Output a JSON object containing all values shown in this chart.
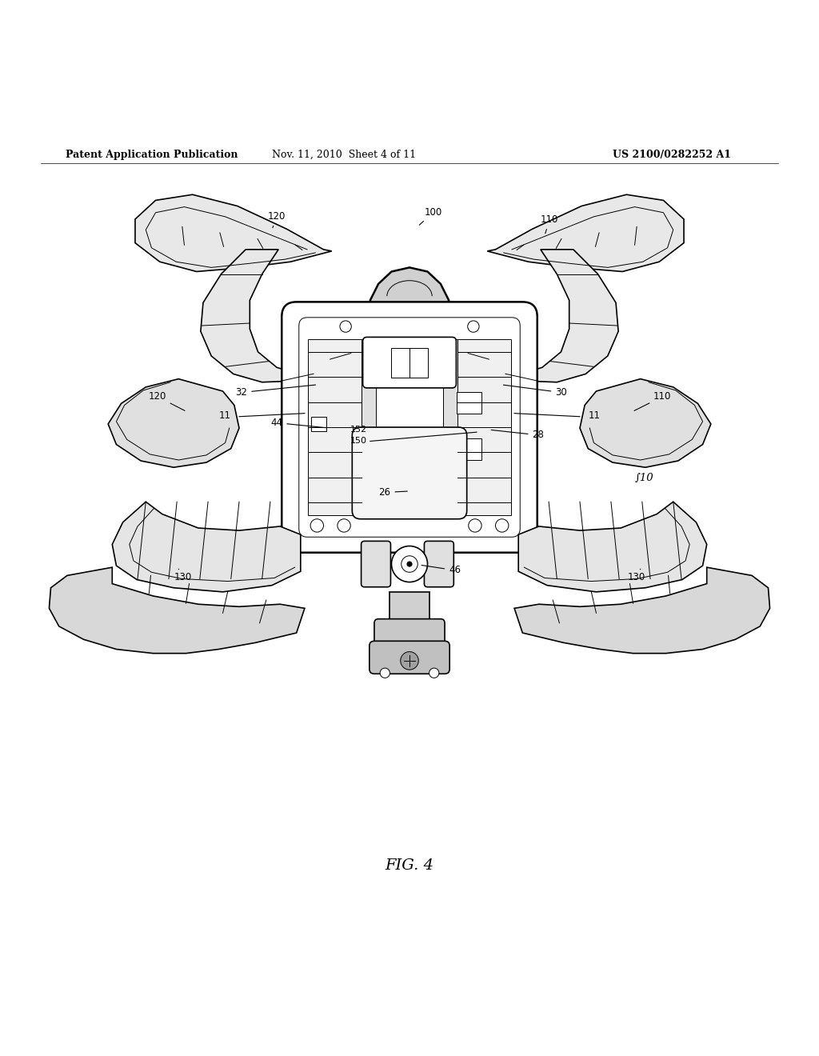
{
  "background_color": "#ffffff",
  "header_left": "Patent Application Publication",
  "header_center": "Nov. 11, 2010  Sheet 4 of 11",
  "header_right": "US 2100/0282252 A1",
  "figure_label": "FIG. 4",
  "header_fontsize": 9,
  "fig_label_fontsize": 14
}
